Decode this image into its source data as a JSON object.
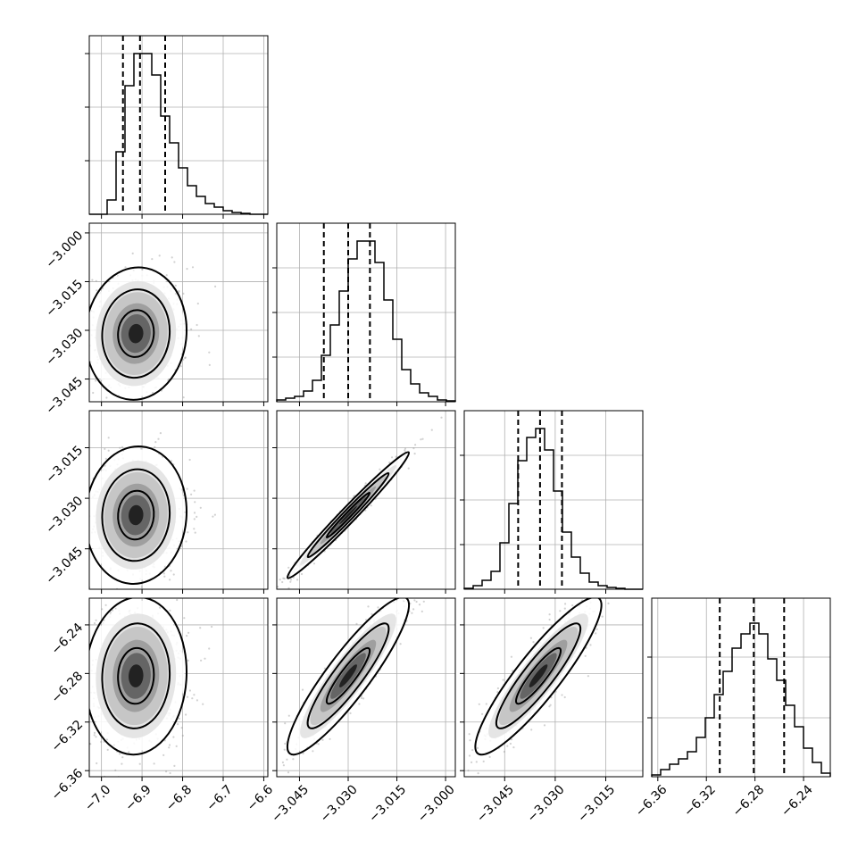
{
  "chart_data": {
    "type": "corner",
    "grid": true,
    "n_params": 4,
    "params": [
      {
        "range": [
          -7.03,
          -6.59
        ],
        "ticks": [
          -7.0,
          -6.9,
          -6.8,
          -6.7,
          -6.6
        ],
        "tick_labels": [
          "−7.0",
          "−6.9",
          "−6.8",
          "−6.7",
          "−6.6"
        ],
        "quantiles": [
          -6.947,
          -6.905,
          -6.843
        ]
      },
      {
        "range": [
          -3.052,
          -2.997
        ],
        "ticks": [
          -3.045,
          -3.03,
          -3.015,
          -3.0
        ],
        "tick_labels": [
          "−3.045",
          "−3.030",
          "−3.015",
          "−3.000"
        ],
        "quantiles": [
          -3.0375,
          -3.03,
          -3.0233
        ]
      },
      {
        "range": [
          -3.057,
          -3.004
        ],
        "ticks": [
          -3.045,
          -3.03,
          -3.015
        ],
        "tick_labels": [
          "−3.045",
          "−3.030",
          "−3.015"
        ],
        "quantiles": [
          -3.041,
          -3.0345,
          -3.028
        ]
      },
      {
        "range": [
          -6.365,
          -6.218
        ],
        "ticks": [
          -6.36,
          -6.32,
          -6.28,
          -6.24
        ],
        "tick_labels": [
          "−6.36",
          "−6.32",
          "−6.28",
          "−6.24"
        ],
        "quantiles": [
          -6.309,
          -6.281,
          -6.256
        ]
      }
    ],
    "hist_y_ticks": [
      {
        "ticks": [
          0.3,
          0.6,
          0.9
        ],
        "max": 1.0
      },
      {
        "ticks": [
          0.25,
          0.5,
          0.75
        ],
        "max": 1.0
      },
      {
        "ticks": [
          0.25,
          0.5,
          0.75
        ],
        "max": 1.0
      },
      {
        "ticks": [
          0.33,
          0.67
        ],
        "max": 1.0
      }
    ],
    "histograms": [
      {
        "values": [
          0.0,
          0.0,
          0.08,
          0.35,
          0.72,
          0.9,
          0.9,
          0.78,
          0.55,
          0.4,
          0.26,
          0.16,
          0.1,
          0.06,
          0.04,
          0.02,
          0.01,
          0.005,
          0.0,
          0.0
        ]
      },
      {
        "values": [
          0.01,
          0.02,
          0.03,
          0.06,
          0.12,
          0.26,
          0.43,
          0.62,
          0.8,
          0.9,
          0.9,
          0.78,
          0.57,
          0.35,
          0.18,
          0.1,
          0.05,
          0.03,
          0.01,
          0.005
        ]
      },
      {
        "values": [
          0.005,
          0.02,
          0.05,
          0.1,
          0.26,
          0.48,
          0.72,
          0.85,
          0.9,
          0.78,
          0.55,
          0.32,
          0.18,
          0.09,
          0.04,
          0.02,
          0.01,
          0.005,
          0.0,
          0.0
        ]
      },
      {
        "values": [
          0.01,
          0.04,
          0.07,
          0.1,
          0.14,
          0.22,
          0.33,
          0.46,
          0.59,
          0.72,
          0.8,
          0.86,
          0.8,
          0.66,
          0.54,
          0.4,
          0.28,
          0.16,
          0.08,
          0.02
        ]
      }
    ],
    "panels": [
      {
        "row": 1,
        "col": 0,
        "mean": [
          -6.915,
          -3.031
        ],
        "sd": [
          0.052,
          0.0085
        ],
        "rho": 0.05
      },
      {
        "row": 2,
        "col": 0,
        "mean": [
          -6.915,
          -3.035
        ],
        "sd": [
          0.052,
          0.0085
        ],
        "rho": 0.05
      },
      {
        "row": 2,
        "col": 1,
        "mean": [
          -3.03,
          -3.035
        ],
        "sd": [
          0.0078,
          0.0078
        ],
        "rho": 0.985
      },
      {
        "row": 3,
        "col": 0,
        "mean": [
          -6.915,
          -6.282
        ],
        "sd": [
          0.052,
          0.027
        ],
        "rho": 0.05
      },
      {
        "row": 3,
        "col": 1,
        "mean": [
          -3.03,
          -6.282
        ],
        "sd": [
          0.0078,
          0.027
        ],
        "rho": 0.9
      },
      {
        "row": 3,
        "col": 2,
        "mean": [
          -3.035,
          -6.282
        ],
        "sd": [
          0.0078,
          0.027
        ],
        "rho": 0.9
      }
    ]
  }
}
